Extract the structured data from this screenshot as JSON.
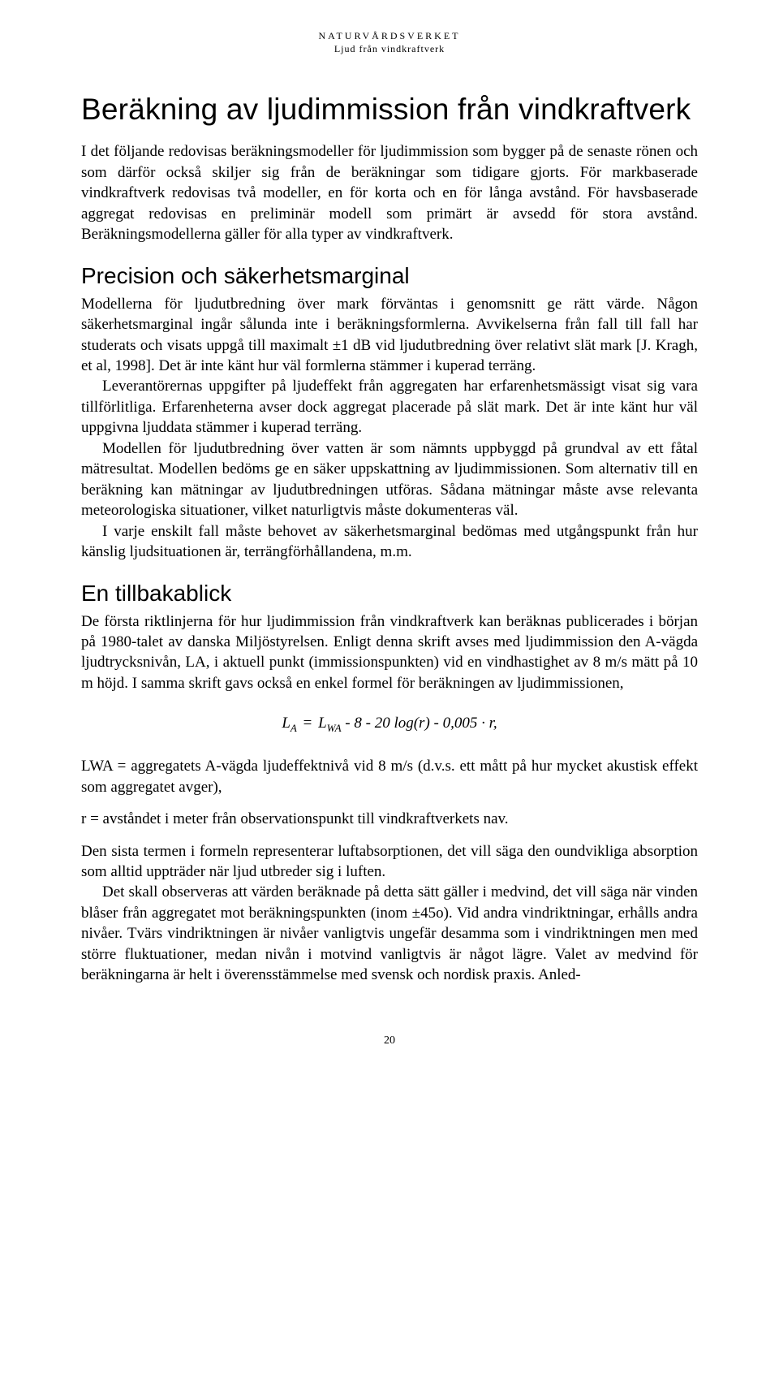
{
  "typography": {
    "body_font": "Times New Roman",
    "heading_font": "Arial",
    "body_fontsize_pt": 14,
    "h1_fontsize_pt": 28,
    "h2_fontsize_pt": 21,
    "running_head_fontsize_pt": 9,
    "text_color": "#000000",
    "background_color": "#ffffff",
    "line_height": 1.34,
    "alignment": "justify"
  },
  "running_head": {
    "line1": "NATURVÅRDSVERKET",
    "line2": "Ljud från vindkraftverk"
  },
  "title": "Beräkning av ljudimmission från vindkraftverk",
  "intro": "I det följande redovisas beräkningsmodeller för ljudimmission som bygger på de senaste rönen och som därför också skiljer sig från de beräkningar som tidigare gjorts. För markbaserade vindkraftverk redovisas två modeller, en för korta och en för långa avstånd. För havsbaserade aggregat redovisas en preliminär modell som primärt är avsedd för stora avstånd. Beräkningsmodellerna gäller för alla typer av vindkraftverk.",
  "section1": {
    "heading": "Precision och säkerhetsmarginal",
    "p1": "Modellerna för ljudutbredning över mark förväntas i genomsnitt ge rätt värde. Någon säkerhetsmarginal ingår sålunda inte i beräkningsformlerna. Avvikelserna från fall till fall har studerats och visats uppgå till maximalt ±1 dB vid ljudutbredning över relativt slät mark [J. Kragh, et al, 1998]. Det är inte känt hur väl formlerna stämmer i kuperad terräng.",
    "p2": "Leverantörernas uppgifter på ljudeffekt från aggregaten har erfarenhetsmässigt visat sig vara tillförlitliga. Erfarenheterna avser dock aggregat placerade på slät mark. Det är inte känt hur väl uppgivna ljuddata stämmer i kuperad terräng.",
    "p3": "Modellen för ljudutbredning över vatten är som nämnts uppbyggd på grundval av ett fåtal mätresultat. Modellen bedöms ge en säker uppskattning av ljudimmissionen. Som alternativ till en beräkning kan mätningar av ljudutbredningen utföras. Sådana mätningar måste avse relevanta meteorologiska situationer, vilket naturligtvis måste dokumenteras väl.",
    "p4": "I varje enskilt fall måste behovet av säkerhetsmarginal bedömas med utgångspunkt från hur känslig ljudsituationen är, terrängförhållandena, m.m."
  },
  "section2": {
    "heading": "En tillbakablick",
    "p1": "De första riktlinjerna för hur ljudimmission från vindkraftverk kan beräknas publicerades i början på 1980-talet av danska Miljöstyrelsen. Enligt denna skrift avses med ljudimmission den A-vägda ljudtrycksnivån, LA, i aktuell punkt (immissionspunkten) vid en vindhastighet av 8 m/s mätt på 10 m höjd. I samma skrift gavs också en enkel formel för beräkningen av ljudimmissionen,",
    "formula": {
      "lhs_var": "L",
      "lhs_sub": "A",
      "rhs_var": "L",
      "rhs_sub": "WA",
      "terms": "- 8 - 20 log(r) - 0,005 · r,"
    },
    "p2": "LWA = aggregatets A-vägda ljudeffektnivå vid 8 m/s (d.v.s. ett mått på hur mycket akustisk effekt som aggregatet avger),",
    "p3": "r = avståndet i meter från observationspunkt till vindkraftverkets nav.",
    "p4": "Den sista termen i formeln representerar luftabsorptionen, det vill säga den oundvikliga absorption som alltid uppträder när ljud utbreder sig i luften.",
    "p5": "Det skall observeras att värden beräknade på detta sätt gäller i medvind, det vill säga när vinden blåser från aggregatet mot beräkningspunkten (inom ±45o). Vid andra vindriktningar, erhålls andra nivåer. Tvärs vindriktningen är nivåer vanligtvis ungefär desamma som i vindriktningen men med större fluktuationer, medan nivån i motvind vanligtvis är något lägre. Valet av medvind för beräkningarna är helt i överensstämmelse med svensk och nordisk praxis. Anled-"
  },
  "page_number": "20"
}
